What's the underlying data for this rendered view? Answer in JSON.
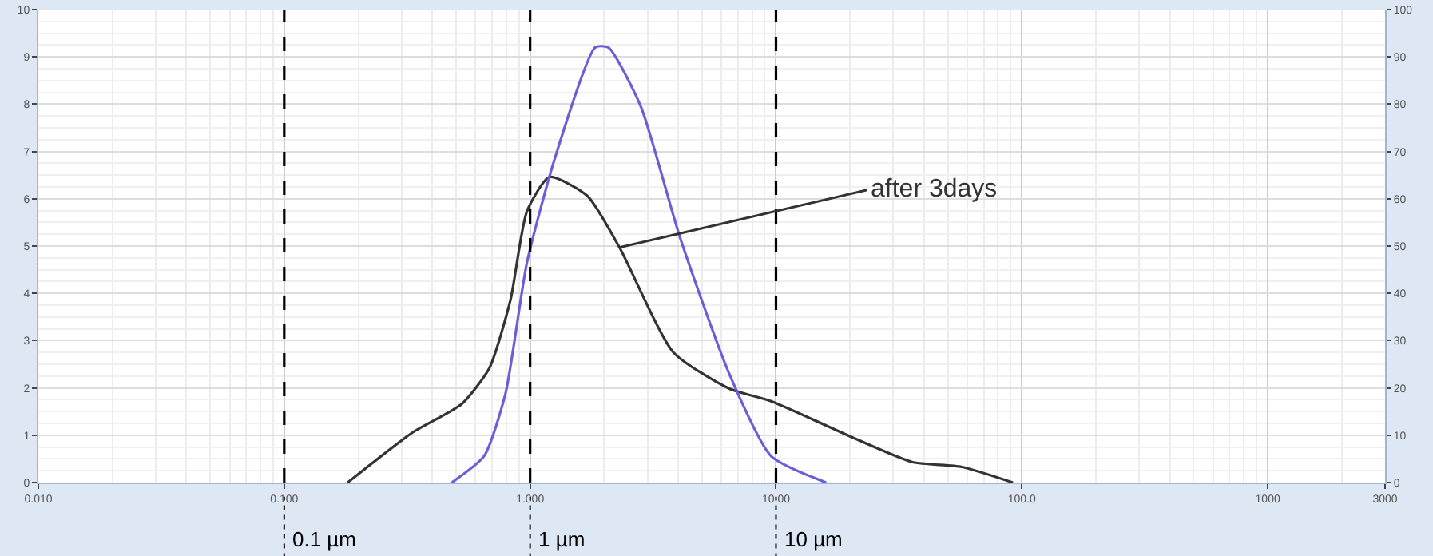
{
  "chart_data": {
    "type": "line",
    "log": "x",
    "grid": true,
    "legend": false,
    "line_style": "solid",
    "marker": "none",
    "xlim": [
      0.01,
      3000
    ],
    "xticks": [
      {
        "value": 0.01,
        "label": "0.010"
      },
      {
        "value": 0.1,
        "label": "0.100"
      },
      {
        "value": 1,
        "label": "1.000"
      },
      {
        "value": 10,
        "label": "10.00"
      },
      {
        "value": 100,
        "label": "100.0"
      },
      1000,
      3000
    ],
    "ylim": [
      0,
      10
    ],
    "yticks": [
      0,
      1,
      2,
      3,
      4,
      5,
      6,
      7,
      8,
      9,
      10
    ],
    "y2lim": [
      0,
      100
    ],
    "y2ticks": [
      0,
      10,
      20,
      30,
      40,
      50,
      60,
      70,
      80,
      90,
      100
    ],
    "series": [
      {
        "color": "#333333",
        "x": [
          0.181,
          0.333,
          0.527,
          0.683,
          0.833,
          0.97,
          1.2,
          1.71,
          2.31,
          3.83,
          6.43,
          9.55,
          21.8,
          36,
          57,
          92
        ],
        "values": [
          0,
          1.06,
          1.66,
          2.42,
          3.87,
          5.73,
          6.46,
          6.06,
          4.97,
          2.75,
          1.99,
          1.72,
          0.89,
          0.43,
          0.33,
          0
        ]
      },
      {
        "color": "#6a5fd8",
        "x": [
          0.48,
          0.65,
          0.795,
          0.97,
          1.26,
          1.84,
          2.08,
          2.82,
          4.06,
          6.43,
          9.55,
          16
        ],
        "values": [
          0,
          0.56,
          1.89,
          4.64,
          6.85,
          9.2,
          9.2,
          7.95,
          5.2,
          2.32,
          0.56,
          0
        ]
      }
    ],
    "ref_lines": [
      {
        "axis": "x",
        "value": 0.1,
        "label": "0.1 µm",
        "color": "#000000",
        "line_style": "dashed"
      },
      {
        "axis": "x",
        "value": 1,
        "label": "1 µm",
        "color": "#000000",
        "line_style": "dashed"
      },
      {
        "axis": "x",
        "value": 10,
        "label": "10 µm",
        "color": "#000000",
        "line_style": "dashed"
      }
    ],
    "annotations": [
      {
        "text": "after 3days",
        "x": 2.31,
        "y": 4.97
      }
    ]
  }
}
